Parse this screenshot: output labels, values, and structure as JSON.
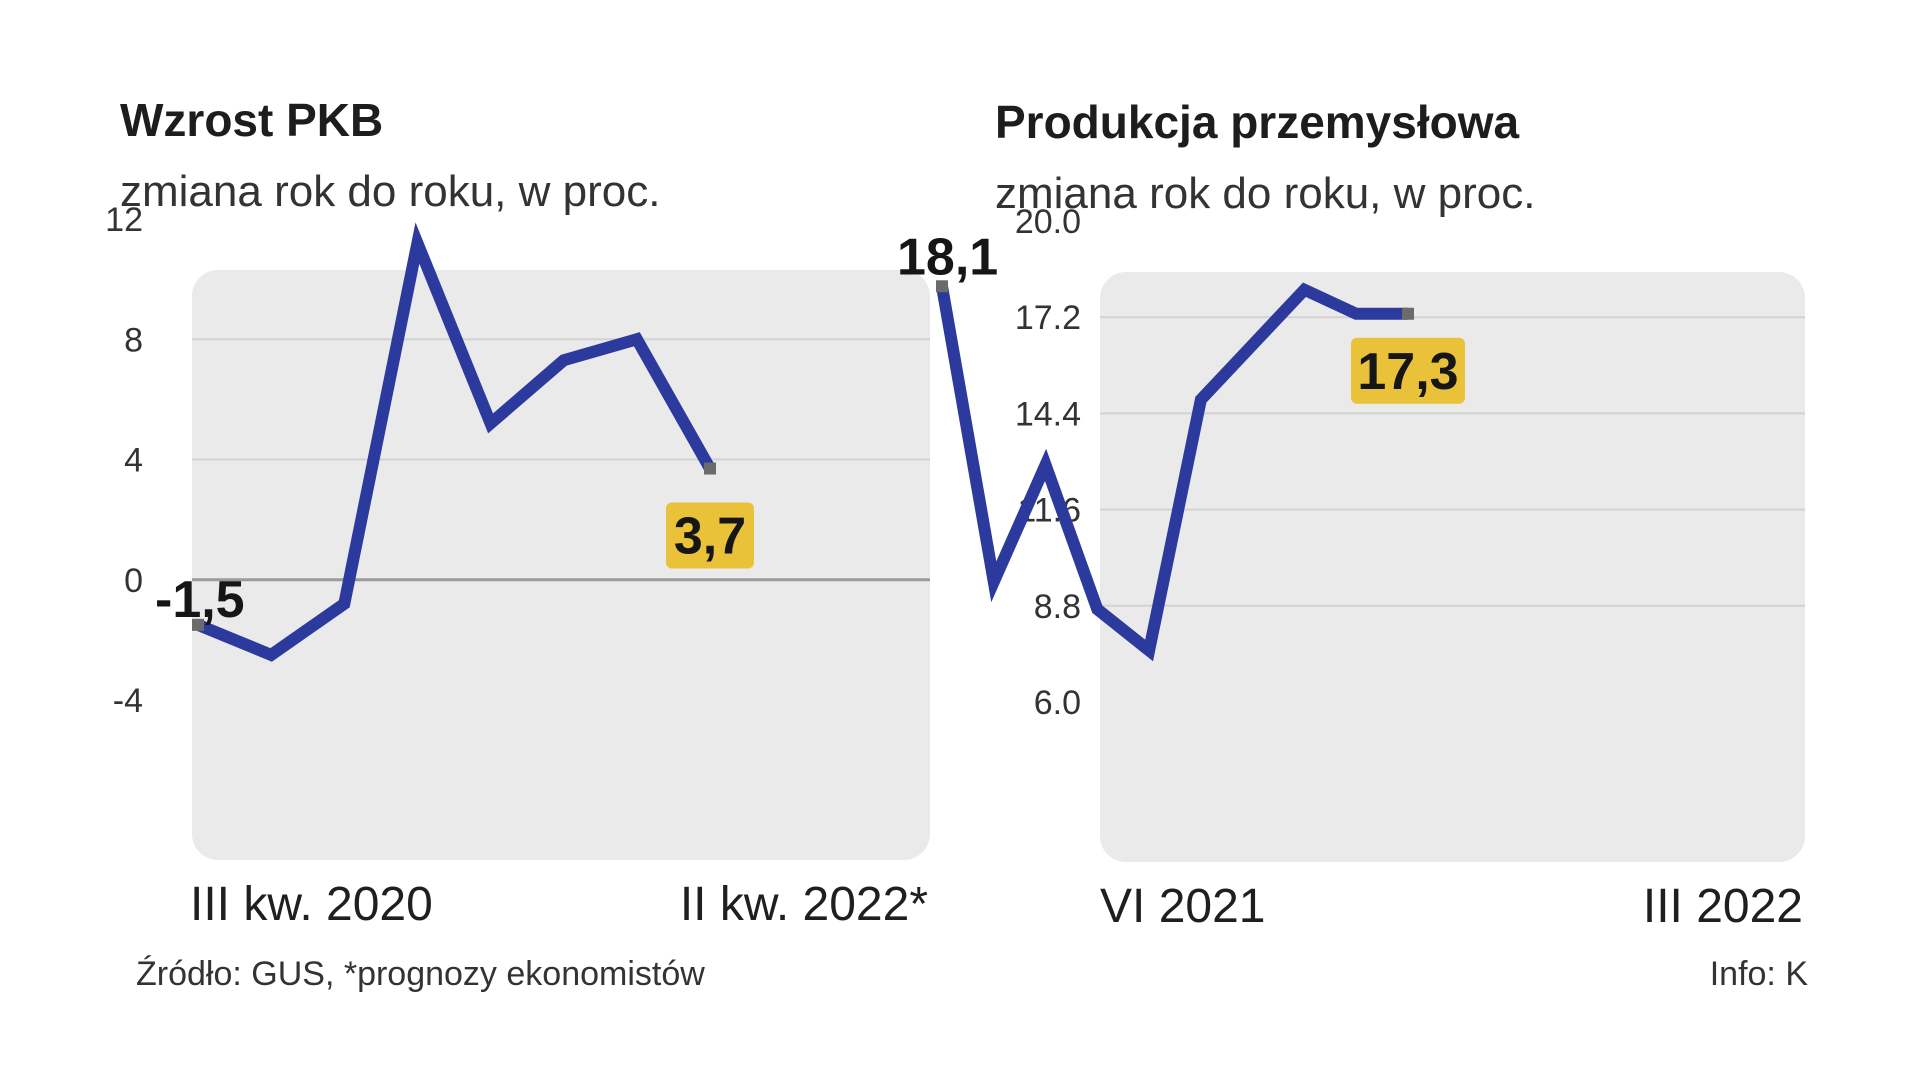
{
  "colors": {
    "line": "#2b3a9c",
    "highlight": "#e9c23a",
    "plot_bg": "#eaeaea",
    "grid": "#d2d2d2",
    "zero_line": "#9a9a9a",
    "marker": "#6b6b6b"
  },
  "footer": {
    "source": "Źródło: GUS,  *prognozy ekonomistów",
    "credit": "Info: K"
  },
  "chart_data": [
    {
      "type": "line",
      "title": "Wzrost PKB",
      "subtitle": "zmiana rok do roku, w proc.",
      "ylim": [
        -4,
        12
      ],
      "yticks": [
        "12",
        "8",
        "4",
        "0",
        "-4"
      ],
      "ytick_values": [
        12,
        8,
        4,
        0,
        -4
      ],
      "x_start_label": "III kw. 2020",
      "x_end_label": "II kw. 2022*",
      "values": [
        -1.5,
        -2.5,
        -0.8,
        11.2,
        5.2,
        7.3,
        8.0,
        3.7
      ],
      "first_label": "-1,5",
      "last_label": "3,7",
      "grid": true,
      "zero_line": true
    },
    {
      "type": "line",
      "title": "Produkcja przemysłowa",
      "subtitle": "zmiana rok do roku, w proc.",
      "ylim": [
        6.0,
        20.0
      ],
      "yticks": [
        "20.0",
        "17.2",
        "14.4",
        "11.6",
        "8.8",
        "6.0"
      ],
      "ytick_values": [
        20.0,
        17.2,
        14.4,
        11.6,
        8.8,
        6.0
      ],
      "x_start_label": "VI 2021",
      "x_end_label": "III 2022",
      "values": [
        18.1,
        9.5,
        12.9,
        8.7,
        7.5,
        14.8,
        16.4,
        18.0,
        17.3,
        17.3
      ],
      "first_label": "18,1",
      "last_label": "17,3",
      "grid": true,
      "zero_line": false
    }
  ]
}
